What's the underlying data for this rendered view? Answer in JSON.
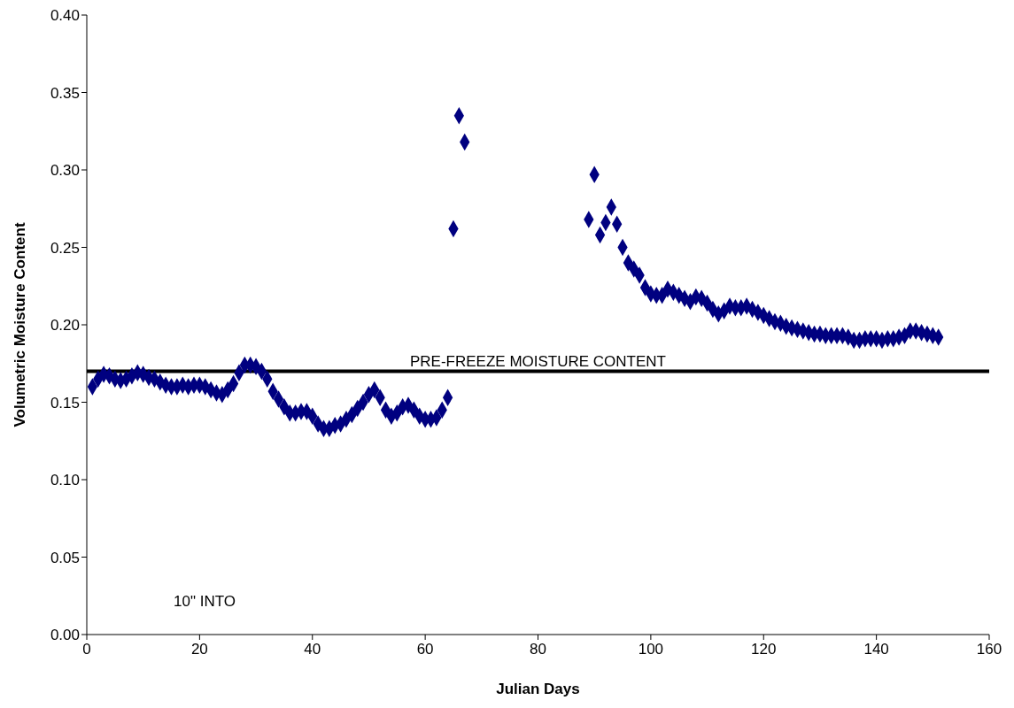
{
  "chart_data": {
    "type": "scatter",
    "xlabel": "Julian Days",
    "ylabel": "Volumetric Moisture Content",
    "x": [
      1,
      2,
      3,
      4,
      5,
      6,
      7,
      8,
      9,
      10,
      11,
      12,
      13,
      14,
      15,
      16,
      17,
      18,
      19,
      20,
      21,
      22,
      23,
      24,
      25,
      26,
      27,
      28,
      29,
      30,
      31,
      32,
      33,
      34,
      35,
      36,
      37,
      38,
      39,
      40,
      41,
      42,
      43,
      44,
      45,
      46,
      47,
      48,
      49,
      50,
      51,
      52,
      53,
      54,
      55,
      56,
      57,
      58,
      59,
      60,
      61,
      62,
      63,
      64,
      65,
      66,
      67,
      89,
      90,
      91,
      92,
      93,
      94,
      95,
      96,
      97,
      98,
      99,
      100,
      101,
      102,
      103,
      104,
      105,
      106,
      107,
      108,
      109,
      110,
      111,
      112,
      113,
      114,
      115,
      116,
      117,
      118,
      119,
      120,
      121,
      122,
      123,
      124,
      125,
      126,
      127,
      128,
      129,
      130,
      131,
      132,
      133,
      134,
      135,
      136,
      137,
      138,
      139,
      140,
      141,
      142,
      143,
      144,
      145,
      146,
      147,
      148,
      149,
      150,
      151
    ],
    "values": [
      0.16,
      0.165,
      0.168,
      0.167,
      0.165,
      0.164,
      0.165,
      0.167,
      0.169,
      0.168,
      0.166,
      0.165,
      0.163,
      0.161,
      0.16,
      0.16,
      0.161,
      0.16,
      0.161,
      0.161,
      0.16,
      0.158,
      0.156,
      0.155,
      0.158,
      0.162,
      0.169,
      0.174,
      0.174,
      0.173,
      0.17,
      0.165,
      0.157,
      0.152,
      0.147,
      0.143,
      0.143,
      0.144,
      0.144,
      0.141,
      0.136,
      0.133,
      0.133,
      0.135,
      0.136,
      0.139,
      0.142,
      0.146,
      0.15,
      0.155,
      0.158,
      0.153,
      0.145,
      0.141,
      0.143,
      0.147,
      0.148,
      0.145,
      0.141,
      0.139,
      0.139,
      0.14,
      0.145,
      0.153,
      0.262,
      0.335,
      0.318,
      0.268,
      0.297,
      0.258,
      0.266,
      0.276,
      0.265,
      0.25,
      0.24,
      0.236,
      0.232,
      0.224,
      0.22,
      0.219,
      0.219,
      0.223,
      0.221,
      0.219,
      0.217,
      0.215,
      0.218,
      0.217,
      0.214,
      0.21,
      0.207,
      0.209,
      0.212,
      0.211,
      0.211,
      0.212,
      0.21,
      0.208,
      0.206,
      0.204,
      0.202,
      0.201,
      0.199,
      0.198,
      0.197,
      0.196,
      0.195,
      0.194,
      0.194,
      0.193,
      0.193,
      0.193,
      0.193,
      0.192,
      0.19,
      0.19,
      0.191,
      0.191,
      0.191,
      0.19,
      0.191,
      0.191,
      0.192,
      0.193,
      0.196,
      0.196,
      0.195,
      0.194,
      0.193,
      0.192
    ],
    "color": "#000080",
    "marker": "diamond",
    "grid": false,
    "legend": false,
    "xlim": [
      0,
      160
    ],
    "xticks": [
      0,
      20,
      40,
      60,
      80,
      100,
      120,
      140,
      160
    ],
    "ylim": [
      0,
      0.4
    ],
    "yticks": [
      {
        "value": 0,
        "label": "0.00"
      },
      {
        "value": 0.05,
        "label": "0.05"
      },
      {
        "value": 0.1,
        "label": "0.10"
      },
      {
        "value": 0.15,
        "label": "0.15"
      },
      {
        "value": 0.2,
        "label": "0.20"
      },
      {
        "value": 0.25,
        "label": "0.25"
      },
      {
        "value": 0.3,
        "label": "0.30"
      },
      {
        "value": 0.35,
        "label": "0.35"
      },
      {
        "value": 0.4,
        "label": "0.40"
      }
    ],
    "ref_lines": [
      {
        "axis": "y",
        "value": 0.17,
        "label": "PRE-FREEZE MOISTURE CONTENT",
        "color": "#000000"
      }
    ],
    "annotations": [
      "10\" INTO"
    ]
  }
}
